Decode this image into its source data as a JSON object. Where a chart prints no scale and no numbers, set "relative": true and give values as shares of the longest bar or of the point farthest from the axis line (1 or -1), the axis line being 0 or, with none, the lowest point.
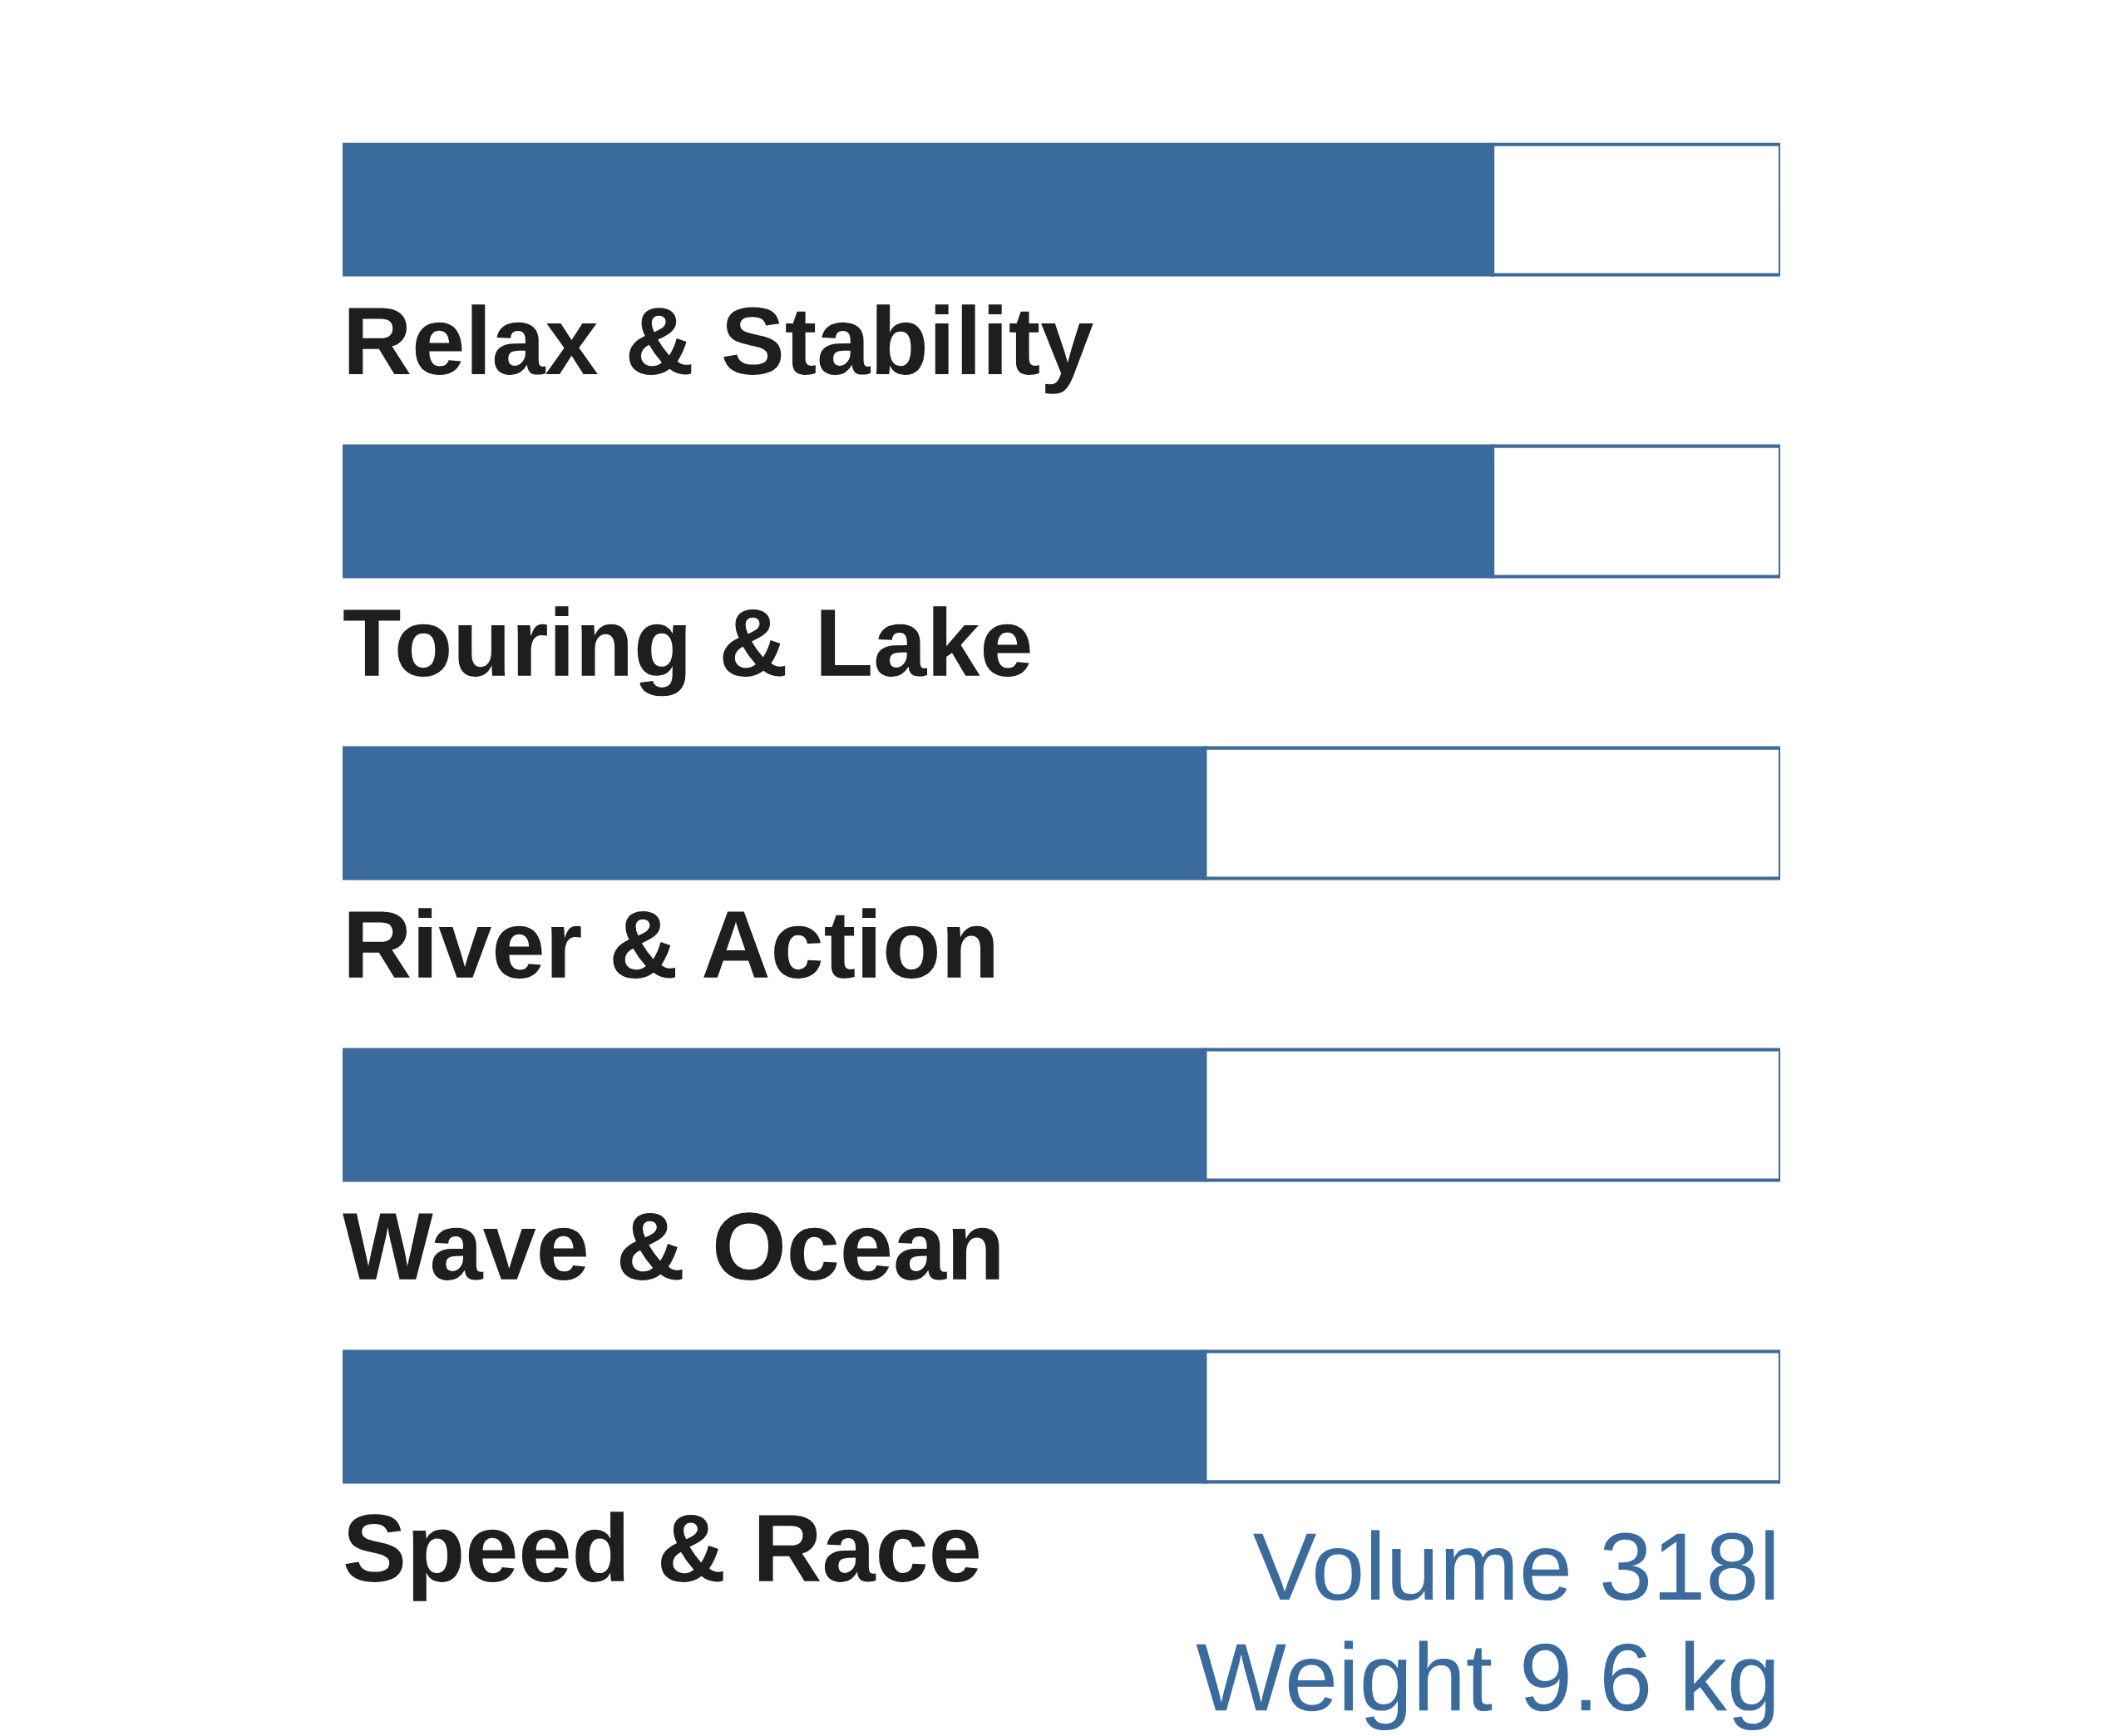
{
  "chart_data": {
    "type": "bar",
    "orientation": "horizontal",
    "relative": true,
    "stacked": true,
    "categories": [
      "Relax & Stability",
      "Touring & Lake",
      "River & Action",
      "Wave & Ocean",
      "Speed & Race"
    ],
    "series": [
      {
        "color": "#3b6a9c",
        "values": [
          0.8,
          0.8,
          0.6,
          0.6,
          0.6
        ]
      },
      {
        "color": "#3b6a9c",
        "values": [
          0.2,
          0.2,
          0.4,
          0.4,
          0.4
        ],
        "colors": [
          "#ffffff",
          "#ffffff",
          "#ffffff",
          "#ffffff",
          "#ffffff"
        ]
      }
    ],
    "annotations": [
      "Volume 318l",
      "Weight 9.6 kg"
    ]
  }
}
